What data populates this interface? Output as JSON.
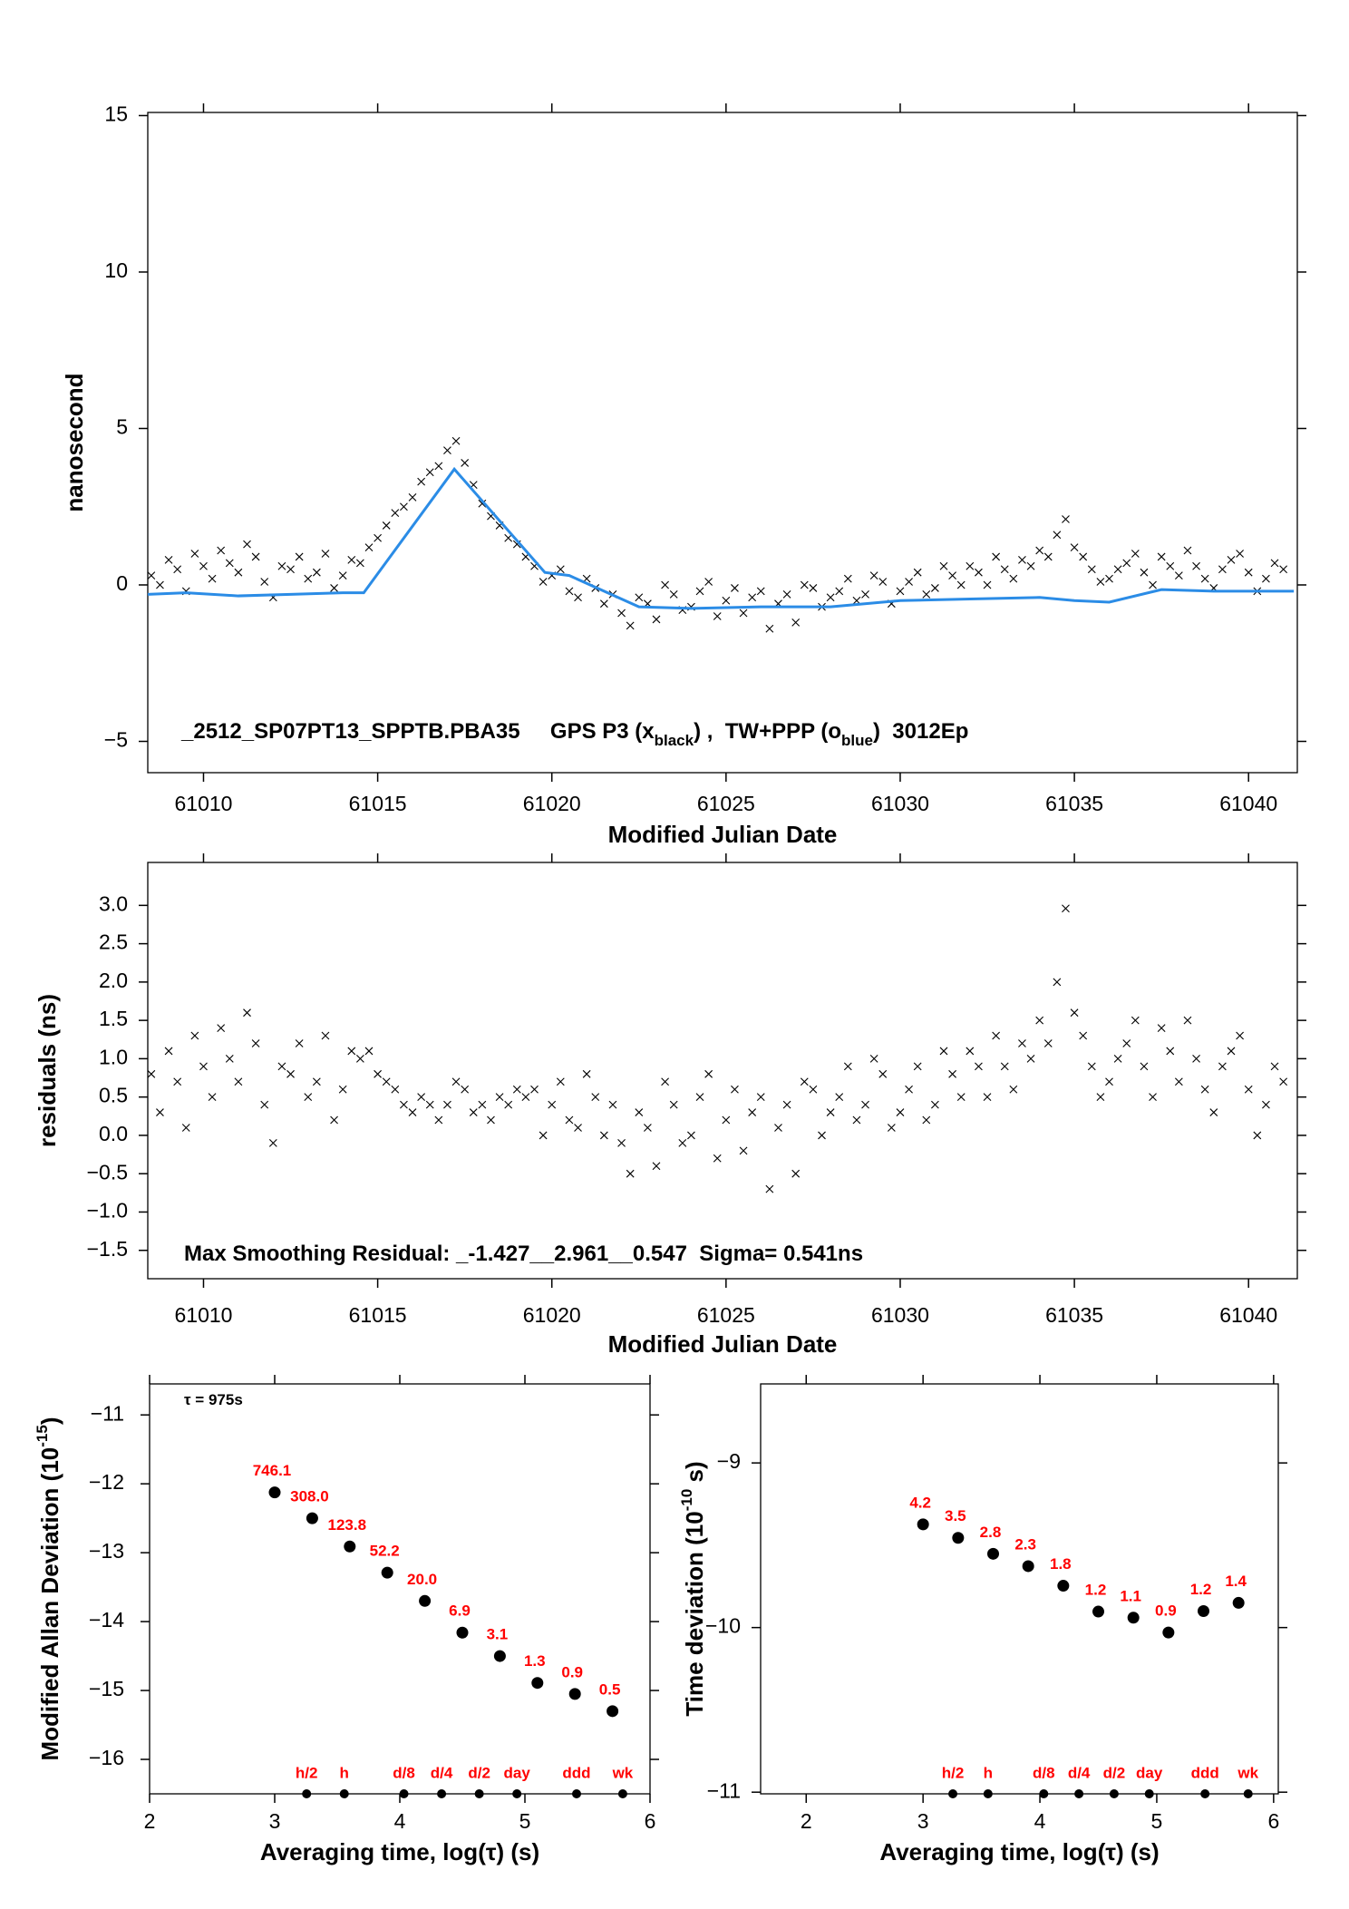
{
  "chart_data": [
    {
      "type": "scatter",
      "y_label": [
        "nanosecond"
      ],
      "x_label": "Modified Julian Date",
      "annotation": [
        "_2512_SP07PT13_SPPTB.PBA35     GPS P3 (x",
        "black",
        ") ,  TW+PPP (o",
        "blue",
        ")  3012Ep"
      ],
      "xlim": [
        61008.4,
        61041.4
      ],
      "ylim": [
        -6,
        15.1
      ],
      "xticks": [
        61010,
        61015,
        61020,
        61025,
        61030,
        61035,
        61040
      ],
      "yticks": [
        {
          "value": -5,
          "label": "−5"
        },
        0,
        5,
        10,
        15
      ],
      "series": [
        {
          "marker": "x",
          "color": "#000000",
          "x": [
            61008.5,
            61008.75,
            61009,
            61009.25,
            61009.5,
            61009.75,
            61010,
            61010.25,
            61010.5,
            61010.75,
            61011,
            61011.25,
            61011.5,
            61011.75,
            61012,
            61012.25,
            61012.5,
            61012.75,
            61013,
            61013.25,
            61013.5,
            61013.75,
            61014,
            61014.25,
            61014.5,
            61014.75,
            61015,
            61015.25,
            61015.5,
            61015.75,
            61016,
            61016.25,
            61016.5,
            61016.75,
            61017,
            61017.25,
            61017.5,
            61017.75,
            61018,
            61018.25,
            61018.5,
            61018.75,
            61019,
            61019.25,
            61019.5,
            61019.75,
            61020,
            61020.25,
            61020.5,
            61020.75,
            61021,
            61021.25,
            61021.5,
            61021.75,
            61022,
            61022.25,
            61022.5,
            61022.75,
            61023,
            61023.25,
            61023.5,
            61023.75,
            61024,
            61024.25,
            61024.5,
            61024.75,
            61025,
            61025.25,
            61025.5,
            61025.75,
            61026,
            61026.25,
            61026.5,
            61026.75,
            61027,
            61027.25,
            61027.5,
            61027.75,
            61028,
            61028.25,
            61028.5,
            61028.75,
            61029,
            61029.25,
            61029.5,
            61029.75,
            61030,
            61030.25,
            61030.5,
            61030.75,
            61031,
            61031.25,
            61031.5,
            61031.75,
            61032,
            61032.25,
            61032.5,
            61032.75,
            61033,
            61033.25,
            61033.5,
            61033.75,
            61034,
            61034.25,
            61034.5,
            61034.75,
            61035,
            61035.25,
            61035.5,
            61035.75,
            61036,
            61036.25,
            61036.5,
            61036.75,
            61037,
            61037.25,
            61037.5,
            61037.75,
            61038,
            61038.25,
            61038.5,
            61038.75,
            61039,
            61039.25,
            61039.5,
            61039.75,
            61040,
            61040.25,
            61040.5,
            61040.75,
            61041
          ],
          "values": [
            0.3,
            0.0,
            0.8,
            0.5,
            -0.2,
            1.0,
            0.6,
            0.2,
            1.1,
            0.7,
            0.4,
            1.3,
            0.9,
            0.1,
            -0.4,
            0.6,
            0.5,
            0.9,
            0.2,
            0.4,
            1.0,
            -0.1,
            0.3,
            0.8,
            0.7,
            1.2,
            1.5,
            1.9,
            2.3,
            2.5,
            2.8,
            3.3,
            3.6,
            3.8,
            4.3,
            4.6,
            3.9,
            3.2,
            2.6,
            2.2,
            1.9,
            1.5,
            1.3,
            0.9,
            0.6,
            0.1,
            0.3,
            0.5,
            -0.2,
            -0.4,
            0.2,
            -0.1,
            -0.6,
            -0.3,
            -0.9,
            -1.3,
            -0.4,
            -0.6,
            -1.1,
            0.0,
            -0.3,
            -0.8,
            -0.7,
            -0.2,
            0.1,
            -1.0,
            -0.5,
            -0.1,
            -0.9,
            -0.4,
            -0.2,
            -1.4,
            -0.6,
            -0.3,
            -1.2,
            0.0,
            -0.1,
            -0.7,
            -0.4,
            -0.2,
            0.2,
            -0.5,
            -0.3,
            0.3,
            0.1,
            -0.6,
            -0.2,
            0.1,
            0.4,
            -0.3,
            -0.1,
            0.6,
            0.3,
            0.0,
            0.6,
            0.4,
            0.0,
            0.9,
            0.5,
            0.2,
            0.8,
            0.6,
            1.1,
            0.9,
            1.6,
            2.1,
            1.2,
            0.9,
            0.5,
            0.1,
            0.2,
            0.5,
            0.7,
            1.0,
            0.4,
            0.0,
            0.9,
            0.6,
            0.3,
            1.1,
            0.6,
            0.2,
            -0.1,
            0.5,
            0.8,
            1.0,
            0.4,
            -0.2,
            0.2,
            0.7,
            0.5
          ]
        },
        {
          "marker": "line",
          "color": "#2b8ce6",
          "x": [
            61008.4,
            61009.5,
            61011,
            61012.5,
            61014,
            61014.6,
            61017.2,
            61019.8,
            61020.5,
            61022.5,
            61024,
            61026,
            61028,
            61030,
            61032,
            61034,
            61035,
            61036,
            61037.5,
            61039,
            61041.3
          ],
          "values": [
            -0.3,
            -0.25,
            -0.35,
            -0.3,
            -0.25,
            -0.25,
            3.7,
            0.4,
            0.3,
            -0.7,
            -0.75,
            -0.7,
            -0.7,
            -0.5,
            -0.45,
            -0.4,
            -0.5,
            -0.55,
            -0.15,
            -0.2,
            -0.2
          ]
        }
      ]
    },
    {
      "type": "scatter",
      "y_label": [
        "residuals (ns)"
      ],
      "x_label": "Modified Julian Date",
      "annotation": [
        "Max Smoothing Residual: _-1.427__2.961__0.547  Sigma= 0.541ns"
      ],
      "xlim": [
        61008.4,
        61041.4
      ],
      "ylim": [
        -1.87,
        3.56
      ],
      "xticks": [
        61010,
        61015,
        61020,
        61025,
        61030,
        61035,
        61040
      ],
      "yticks": [
        {
          "value": -1.5,
          "label": "−1.5"
        },
        {
          "value": -1,
          "label": "−1.0"
        },
        {
          "value": -0.5,
          "label": "−0.5"
        },
        {
          "value": 0,
          "label": "0.0"
        },
        0.5,
        {
          "value": 1,
          "label": "1.0"
        },
        1.5,
        {
          "value": 2,
          "label": "2.0"
        },
        2.5,
        {
          "value": 3,
          "label": "3.0"
        }
      ],
      "series": [
        {
          "marker": "x",
          "color": "#000000",
          "x": [
            61008.5,
            61008.75,
            61009,
            61009.25,
            61009.5,
            61009.75,
            61010,
            61010.25,
            61010.5,
            61010.75,
            61011,
            61011.25,
            61011.5,
            61011.75,
            61012,
            61012.25,
            61012.5,
            61012.75,
            61013,
            61013.25,
            61013.5,
            61013.75,
            61014,
            61014.25,
            61014.5,
            61014.75,
            61015,
            61015.25,
            61015.5,
            61015.75,
            61016,
            61016.25,
            61016.5,
            61016.75,
            61017,
            61017.25,
            61017.5,
            61017.75,
            61018,
            61018.25,
            61018.5,
            61018.75,
            61019,
            61019.25,
            61019.5,
            61019.75,
            61020,
            61020.25,
            61020.5,
            61020.75,
            61021,
            61021.25,
            61021.5,
            61021.75,
            61022,
            61022.25,
            61022.5,
            61022.75,
            61023,
            61023.25,
            61023.5,
            61023.75,
            61024,
            61024.25,
            61024.5,
            61024.75,
            61025,
            61025.25,
            61025.5,
            61025.75,
            61026,
            61026.25,
            61026.5,
            61026.75,
            61027,
            61027.25,
            61027.5,
            61027.75,
            61028,
            61028.25,
            61028.5,
            61028.75,
            61029,
            61029.25,
            61029.5,
            61029.75,
            61030,
            61030.25,
            61030.5,
            61030.75,
            61031,
            61031.25,
            61031.5,
            61031.75,
            61032,
            61032.25,
            61032.5,
            61032.75,
            61033,
            61033.25,
            61033.5,
            61033.75,
            61034,
            61034.25,
            61034.5,
            61034.75,
            61035,
            61035.25,
            61035.5,
            61035.75,
            61036,
            61036.25,
            61036.5,
            61036.75,
            61037,
            61037.25,
            61037.5,
            61037.75,
            61038,
            61038.25,
            61038.5,
            61038.75,
            61039,
            61039.25,
            61039.5,
            61039.75,
            61040,
            61040.25,
            61040.5,
            61040.75,
            61041
          ],
          "values": [
            0.8,
            0.3,
            1.1,
            0.7,
            0.1,
            1.3,
            0.9,
            0.5,
            1.4,
            1.0,
            0.7,
            1.6,
            1.2,
            0.4,
            -0.1,
            0.9,
            0.8,
            1.2,
            0.5,
            0.7,
            1.3,
            0.2,
            0.6,
            1.1,
            1.0,
            1.1,
            0.8,
            0.7,
            0.6,
            0.4,
            0.3,
            0.5,
            0.4,
            0.2,
            0.4,
            0.7,
            0.6,
            0.3,
            0.4,
            0.2,
            0.5,
            0.4,
            0.6,
            0.5,
            0.6,
            0.0,
            0.4,
            0.7,
            0.2,
            0.1,
            0.8,
            0.5,
            0.0,
            0.4,
            -0.1,
            -0.5,
            0.3,
            0.1,
            -0.4,
            0.7,
            0.4,
            -0.1,
            0.0,
            0.5,
            0.8,
            -0.3,
            0.2,
            0.6,
            -0.2,
            0.3,
            0.5,
            -0.7,
            0.1,
            0.4,
            -0.5,
            0.7,
            0.6,
            0.0,
            0.3,
            0.5,
            0.9,
            0.2,
            0.4,
            1.0,
            0.8,
            0.1,
            0.3,
            0.6,
            0.9,
            0.2,
            0.4,
            1.1,
            0.8,
            0.5,
            1.1,
            0.9,
            0.5,
            1.3,
            0.9,
            0.6,
            1.2,
            1.0,
            1.5,
            1.2,
            2.0,
            2.96,
            1.6,
            1.3,
            0.9,
            0.5,
            0.7,
            1.0,
            1.2,
            1.5,
            0.9,
            0.5,
            1.4,
            1.1,
            0.7,
            1.5,
            1.0,
            0.6,
            0.3,
            0.9,
            1.1,
            1.3,
            0.6,
            0.0,
            0.4,
            0.9,
            0.7
          ]
        }
      ]
    },
    {
      "type": "scatter",
      "y_label": [
        "Modified Allan Deviation (10",
        "-15",
        ")"
      ],
      "x_label": "Averaging time, log(τ) (s)",
      "annotation": [
        "τ = 975s"
      ],
      "xlim": [
        2,
        6
      ],
      "ylim": [
        -16.5,
        -10.55
      ],
      "xticks": [
        2,
        3,
        4,
        5,
        6
      ],
      "yticks": [
        {
          "value": -16,
          "label": "−16"
        },
        {
          "value": -15,
          "label": "−15"
        },
        {
          "value": -14,
          "label": "−14"
        },
        {
          "value": -13,
          "label": "−13"
        },
        {
          "value": -12,
          "label": "−12"
        },
        {
          "value": -11,
          "label": "−11"
        }
      ],
      "series": [
        {
          "marker": "dot",
          "color": "#000000",
          "label_color": "#ff0000",
          "x": [
            3.0,
            3.3,
            3.6,
            3.9,
            4.2,
            4.5,
            4.8,
            5.1,
            5.4,
            5.7
          ],
          "values": [
            -12.125,
            -12.5,
            -12.91,
            -13.29,
            -13.7,
            -14.16,
            -14.5,
            -14.89,
            -15.05,
            -15.3
          ],
          "point_labels": [
            "746.1",
            "308.0",
            "123.8",
            "52.2",
            "20.0",
            "6.9",
            "3.1",
            "1.3",
            "0.9",
            "0.5"
          ]
        }
      ],
      "period_markers": {
        "x": [
          3.255,
          3.556,
          4.033,
          4.334,
          4.635,
          4.936,
          5.413,
          5.782
        ],
        "labels": [
          "h/2",
          "h",
          "d/8",
          "d/4",
          "d/2",
          "day",
          "ddd",
          "wk"
        ]
      }
    },
    {
      "type": "scatter",
      "y_label": [
        "Time deviation (10",
        "-10",
        " s)"
      ],
      "x_label": "Averaging time, log(τ) (s)",
      "xlim": [
        1.61,
        6.04
      ],
      "ylim": [
        -11.01,
        -8.52
      ],
      "xticks": [
        2,
        3,
        4,
        5,
        6
      ],
      "yticks": [
        {
          "value": -11,
          "label": "−11"
        },
        {
          "value": -10,
          "label": "−10"
        },
        {
          "value": -9,
          "label": "−9"
        }
      ],
      "series": [
        {
          "marker": "dot",
          "color": "#000000",
          "label_color": "#ff0000",
          "x": [
            3.0,
            3.3,
            3.6,
            3.9,
            4.2,
            4.5,
            4.8,
            5.1,
            5.4,
            5.7
          ],
          "values": [
            -9.373,
            -9.455,
            -9.552,
            -9.627,
            -9.746,
            -9.903,
            -9.94,
            -10.03,
            -9.9,
            -9.85
          ],
          "point_labels": [
            "4.2",
            "3.5",
            "2.8",
            "2.3",
            "1.8",
            "1.2",
            "1.1",
            "0.9",
            "1.2",
            "1.4"
          ]
        }
      ],
      "period_markers": {
        "x": [
          3.255,
          3.556,
          4.033,
          4.334,
          4.635,
          4.936,
          5.413,
          5.782
        ],
        "labels": [
          "h/2",
          "h",
          "d/8",
          "d/4",
          "d/2",
          "day",
          "ddd",
          "wk"
        ]
      }
    }
  ]
}
